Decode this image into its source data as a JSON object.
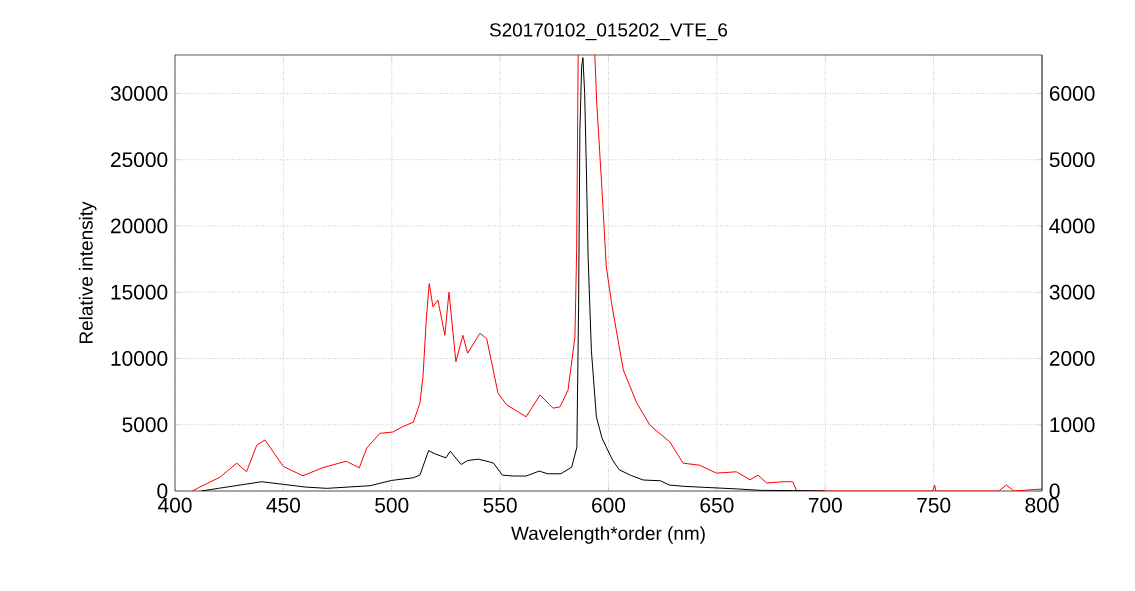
{
  "chart_data": {
    "type": "line",
    "title": "S20170102_015202_VTE_6",
    "xlabel": "Wavelength*order (nm)",
    "ylabel": "Relative intensity",
    "xlim": [
      400,
      800
    ],
    "xticks": [
      400,
      450,
      500,
      550,
      600,
      650,
      700,
      750,
      800
    ],
    "ylim": [
      0,
      32900
    ],
    "yticks": [
      0,
      5000,
      10000,
      15000,
      20000,
      25000,
      30000
    ],
    "y2lim": [
      0,
      6580
    ],
    "y2ticks": [
      0,
      1000,
      2000,
      3000,
      4000,
      5000,
      6000
    ],
    "grid": true,
    "series": [
      {
        "color": "#000000",
        "x": [
          412,
          420,
          430,
          440,
          450,
          460,
          470,
          480,
          490,
          500,
          510,
          513,
          517,
          520,
          525,
          527,
          532,
          535,
          540,
          545,
          547,
          551,
          556,
          562,
          568,
          572,
          578,
          583,
          585.4,
          586.2,
          586.8,
          587.6,
          588.2,
          589,
          589.8,
          590.6,
          592.1,
          594.4,
          597,
          599,
          602,
          605,
          610,
          616,
          624,
          628,
          635,
          650,
          660,
          670,
          685,
          700
        ],
        "values": [
          0,
          200,
          450,
          700,
          500,
          300,
          200,
          300,
          400,
          800,
          1000,
          1200,
          3050,
          2800,
          2500,
          3000,
          2000,
          2300,
          2400,
          2200,
          2100,
          1200,
          1130,
          1130,
          1500,
          1300,
          1300,
          1800,
          3300,
          14000,
          27200,
          32000,
          32700,
          30000,
          24200,
          17600,
          10600,
          5600,
          4000,
          3300,
          2300,
          1600,
          1200,
          830,
          770,
          450,
          350,
          230,
          150,
          50,
          30,
          0
        ]
      },
      {
        "color": "#ff0000",
        "axis": "y2",
        "x": [
          408,
          411.5,
          420.8,
          428.5,
          433,
          437.7,
          441.5,
          450,
          459,
          468,
          479,
          485,
          488.5,
          494.5,
          500.5,
          505,
          510,
          513,
          514.4,
          516,
          517.3,
          519,
          521.3,
          524.5,
          526.4,
          529.6,
          532.8,
          535,
          540.7,
          543.8,
          549,
          553,
          562,
          568.4,
          574.4,
          577.6,
          581.3,
          584.5,
          585.3,
          586,
          590,
          593.7,
          594.5,
          596.8,
          599,
          601.4,
          606.8,
          613,
          619,
          622.8,
          628.3,
          634.4,
          642,
          649.8,
          659,
          665.3,
          669,
          673,
          680.6,
          685,
          686.8,
          700,
          749.5,
          750.5,
          751,
          780,
          783.6,
          787,
          800
        ],
        "values": [
          0,
          60,
          210,
          420,
          290,
          690,
          770,
          370,
          230,
          350,
          450,
          350,
          650,
          870,
          890,
          970,
          1040,
          1330,
          1720,
          2620,
          3130,
          2780,
          2880,
          2350,
          3000,
          1950,
          2350,
          2080,
          2380,
          2300,
          1480,
          1300,
          1120,
          1450,
          1250,
          1270,
          1520,
          2320,
          3630,
          6580,
          null,
          6580,
          5900,
          4650,
          3380,
          2840,
          1830,
          1330,
          1000,
          890,
          740,
          420,
          390,
          270,
          290,
          170,
          240,
          120,
          140,
          140,
          0,
          0,
          0,
          90,
          0,
          0,
          90,
          0,
          30
        ]
      }
    ]
  }
}
